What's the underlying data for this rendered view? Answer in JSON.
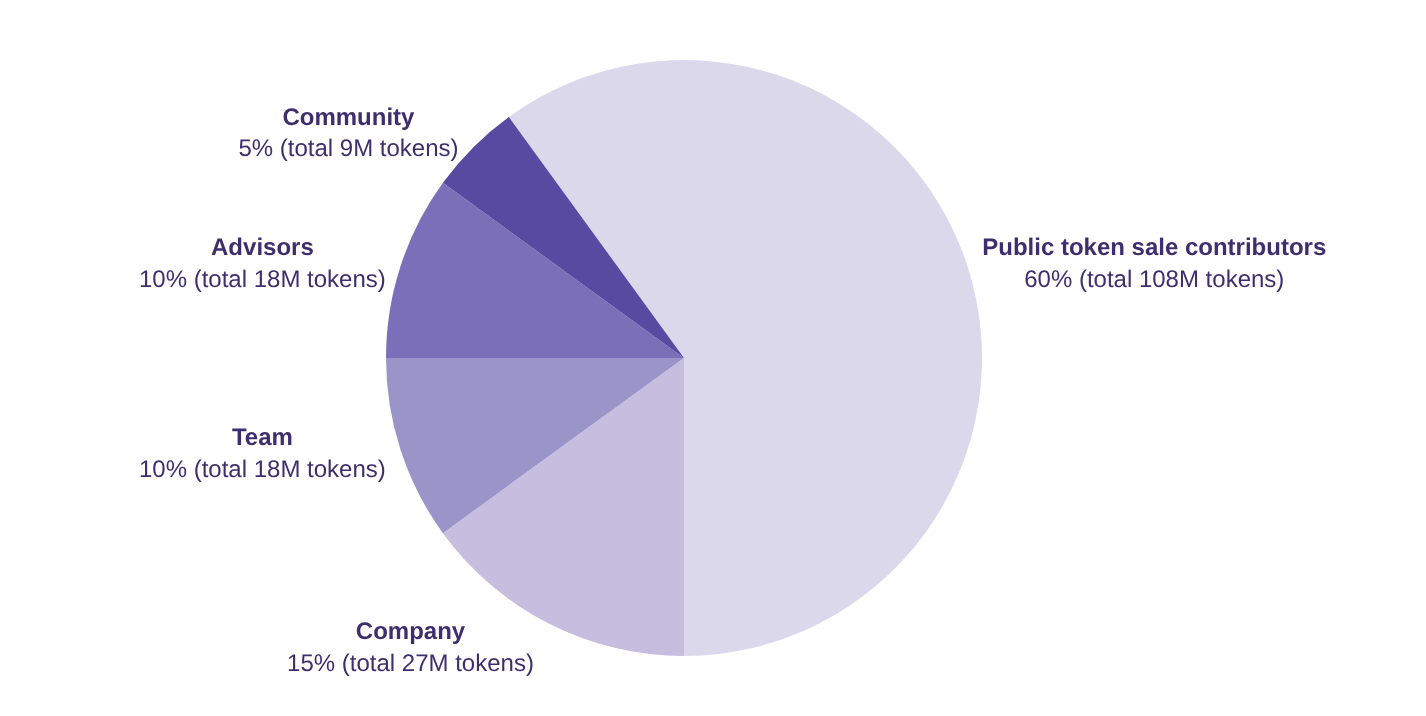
{
  "chart_data": {
    "type": "pie",
    "categories": [
      "Public token sale contributors",
      "Company",
      "Team",
      "Advisors",
      "Community"
    ],
    "values": [
      60,
      15,
      10,
      10,
      5
    ],
    "value_labels": [
      "60% (total 108M tokens)",
      "15% (total 27M tokens)",
      "10% (total 18M tokens)",
      "10% (total 18M tokens)",
      "5% (total 9M tokens)"
    ],
    "colors": [
      "#dcd8ec",
      "#c5bedf",
      "#9a94c8",
      "#7a6fb8",
      "#574aa0"
    ],
    "legend": false
  }
}
